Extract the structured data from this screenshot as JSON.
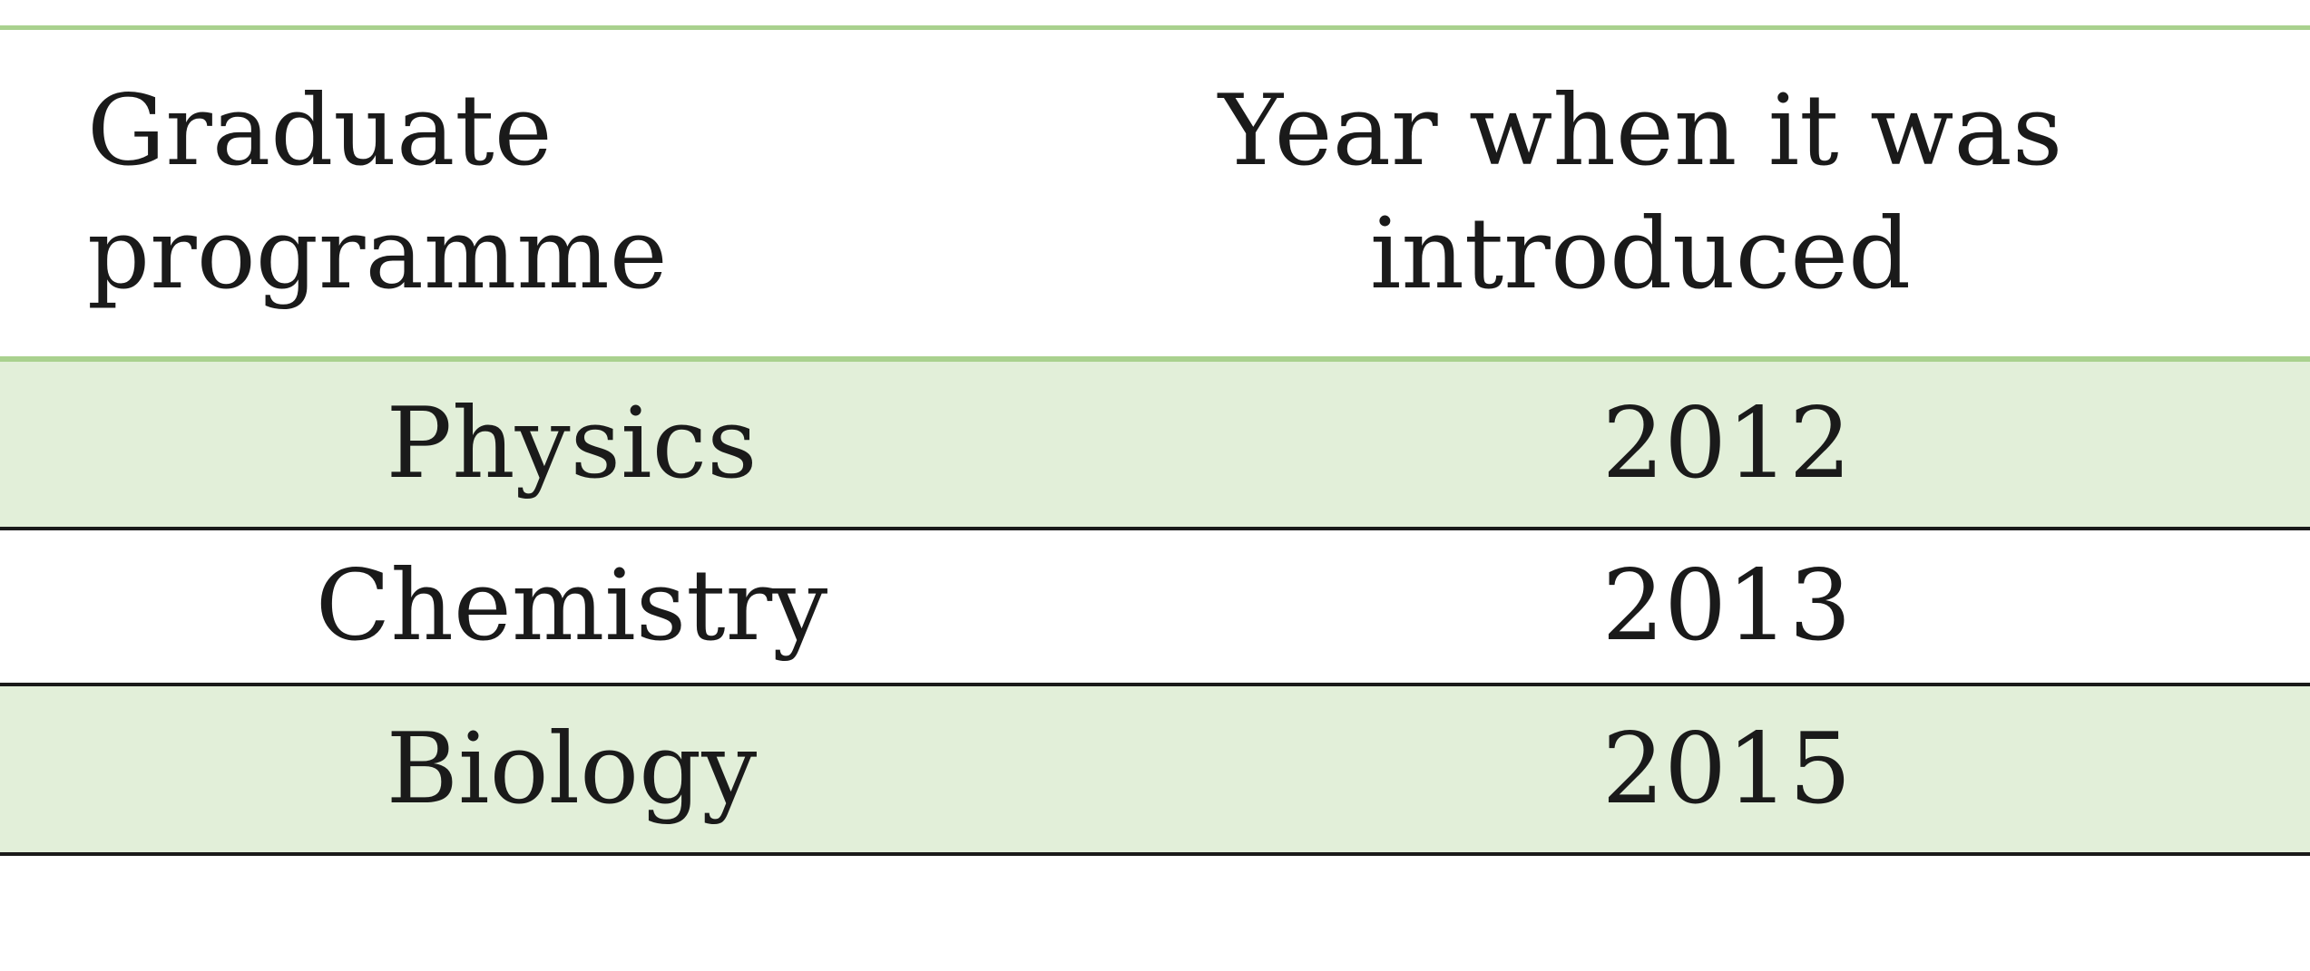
{
  "table": {
    "headers": [
      "Graduate programme",
      "Year when it was introduced"
    ],
    "rows": [
      [
        "Physics",
        "2012"
      ],
      [
        "Chemistry",
        "2013"
      ],
      [
        "Biology",
        "2015"
      ]
    ]
  },
  "colors": {
    "accent_rule": "#a9d18e",
    "row_shade": "#e2efd9",
    "row_rule": "#1a1a1a"
  }
}
